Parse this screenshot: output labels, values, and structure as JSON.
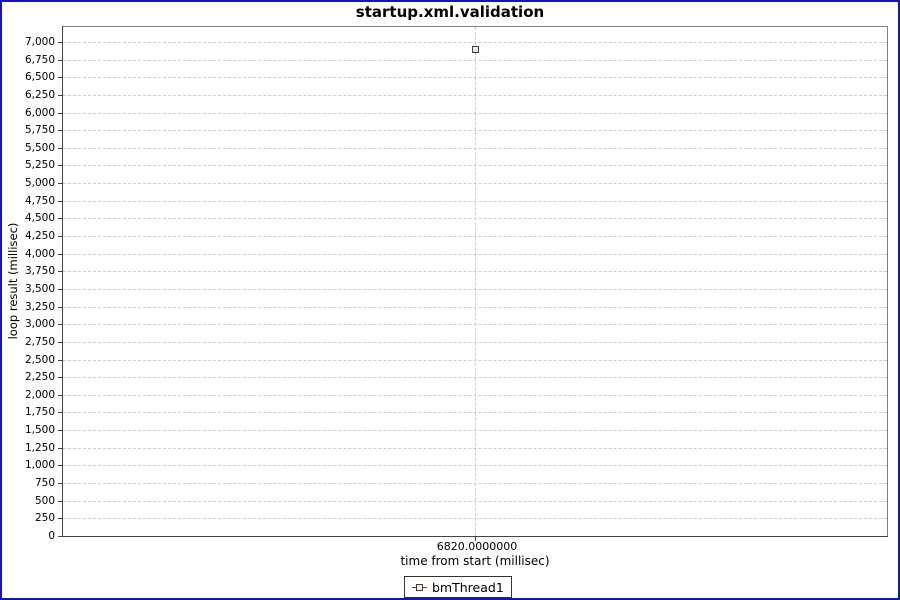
{
  "window": {
    "border_color": "#1515b5",
    "background": "#ffffff"
  },
  "chart_data": {
    "type": "scatter",
    "title": "startup.xml.validation",
    "xlabel": "time from start (millisec)",
    "ylabel": "loop result (millisec)",
    "series": [
      {
        "name": "bmThread1",
        "points": [
          {
            "x": 6820,
            "y": 6890
          }
        ]
      }
    ],
    "x_ticks": [
      6820
    ],
    "x_tick_labels": [
      "6820.0000000"
    ],
    "xlim": [
      6819.5,
      6820.5
    ],
    "y_ticks": [
      0,
      250,
      500,
      750,
      1000,
      1250,
      1500,
      1750,
      2000,
      2250,
      2500,
      2750,
      3000,
      3250,
      3500,
      3750,
      4000,
      4250,
      4500,
      4750,
      5000,
      5250,
      5500,
      5750,
      6000,
      6250,
      6500,
      6750,
      7000
    ],
    "ylim": [
      0,
      7212
    ],
    "grid": "dashed",
    "legend_position": "bottom",
    "marker": {
      "shape": "square",
      "fill": "#e4f3ea",
      "border": "#5a372e"
    },
    "colors": {
      "grid": "#cccccc",
      "plot_border": "#808080",
      "axis": "#444444",
      "text": "#000000"
    }
  }
}
